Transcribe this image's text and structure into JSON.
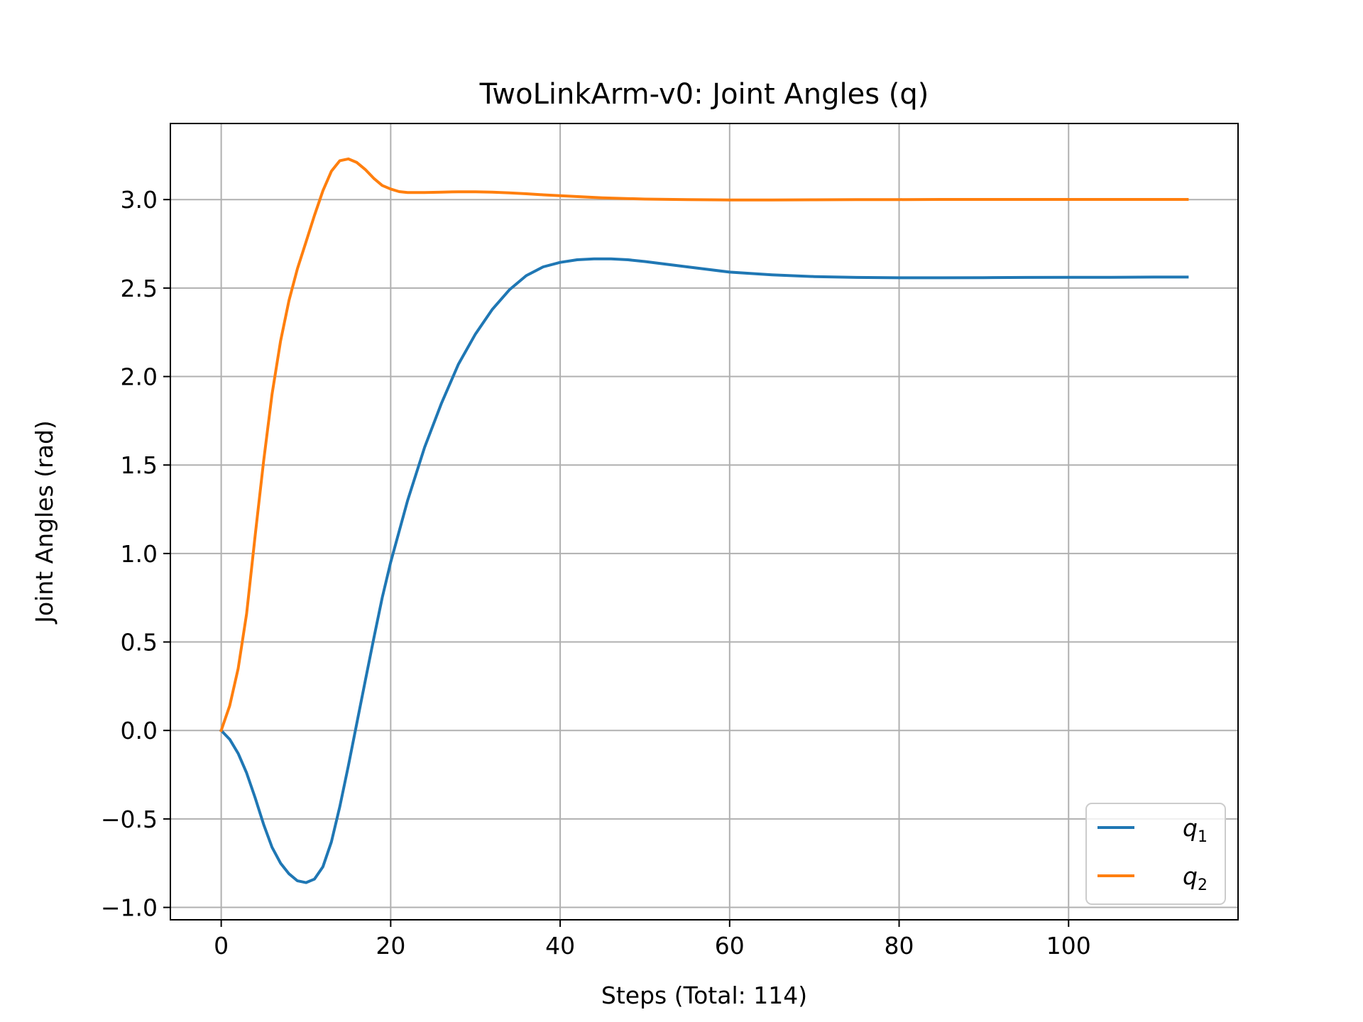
{
  "chart_data": {
    "type": "line",
    "title": "TwoLinkArm-v0: Joint Angles (q)",
    "xlabel": "Steps (Total: 114)",
    "ylabel": "Joint Angles (rad)",
    "xlim": [
      -6,
      120
    ],
    "ylim": [
      -1.07,
      3.43
    ],
    "xticks": [
      0,
      20,
      40,
      60,
      80,
      100
    ],
    "yticks": [
      -1.0,
      -0.5,
      0.0,
      0.5,
      1.0,
      1.5,
      2.0,
      2.5,
      3.0
    ],
    "xtick_labels": [
      "0",
      "20",
      "40",
      "60",
      "80",
      "100"
    ],
    "ytick_labels": [
      "−1.0",
      "−0.5",
      "0.0",
      "0.5",
      "1.0",
      "1.5",
      "2.0",
      "2.5",
      "3.0"
    ],
    "grid": true,
    "legend_position": "lower-right",
    "series": [
      {
        "name": "q",
        "subscript": "1",
        "color": "#1f77b4",
        "x": [
          0,
          1,
          2,
          3,
          4,
          5,
          6,
          7,
          8,
          9,
          10,
          11,
          12,
          13,
          14,
          15,
          16,
          17,
          18,
          19,
          20,
          22,
          24,
          26,
          28,
          30,
          32,
          34,
          36,
          38,
          40,
          42,
          44,
          46,
          48,
          50,
          55,
          60,
          65,
          70,
          75,
          80,
          85,
          90,
          95,
          100,
          105,
          110,
          114
        ],
        "y": [
          0,
          -0.05,
          -0.13,
          -0.24,
          -0.38,
          -0.53,
          -0.66,
          -0.75,
          -0.81,
          -0.85,
          -0.86,
          -0.84,
          -0.77,
          -0.63,
          -0.43,
          -0.2,
          0.04,
          0.28,
          0.52,
          0.75,
          0.95,
          1.3,
          1.6,
          1.85,
          2.07,
          2.24,
          2.38,
          2.49,
          2.57,
          2.62,
          2.645,
          2.66,
          2.665,
          2.665,
          2.66,
          2.65,
          2.62,
          2.59,
          2.575,
          2.565,
          2.56,
          2.558,
          2.558,
          2.559,
          2.56,
          2.561,
          2.561,
          2.562,
          2.562
        ]
      },
      {
        "name": "q",
        "subscript": "2",
        "color": "#ff7f0e",
        "x": [
          0,
          1,
          2,
          3,
          4,
          5,
          6,
          7,
          8,
          9,
          10,
          11,
          12,
          13,
          14,
          15,
          16,
          17,
          18,
          19,
          20,
          21,
          22,
          24,
          26,
          28,
          30,
          32,
          34,
          36,
          38,
          40,
          45,
          50,
          55,
          60,
          65,
          70,
          75,
          80,
          85,
          90,
          95,
          100,
          105,
          110,
          114
        ],
        "y": [
          0,
          0.14,
          0.35,
          0.66,
          1.1,
          1.52,
          1.9,
          2.2,
          2.43,
          2.61,
          2.76,
          2.91,
          3.05,
          3.16,
          3.22,
          3.23,
          3.21,
          3.17,
          3.12,
          3.08,
          3.06,
          3.045,
          3.04,
          3.04,
          3.042,
          3.044,
          3.044,
          3.042,
          3.038,
          3.033,
          3.027,
          3.022,
          3.01,
          3.003,
          3.0,
          2.998,
          2.998,
          2.999,
          3.0,
          3.0,
          3.001,
          3.001,
          3.001,
          3.001,
          3.001,
          3.001,
          3.001
        ]
      }
    ]
  }
}
